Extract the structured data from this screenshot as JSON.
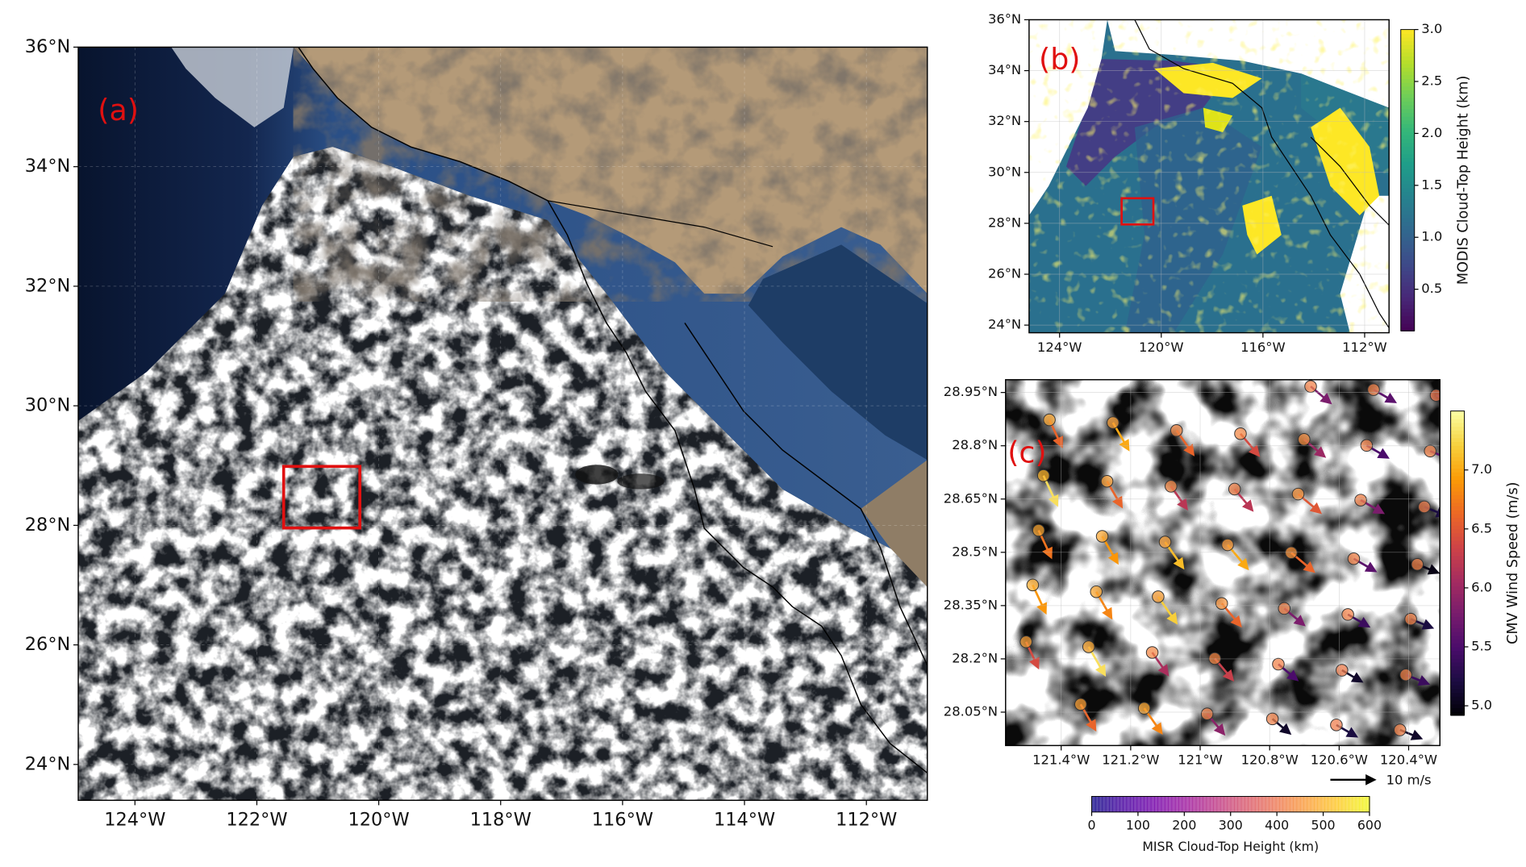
{
  "chart_data": [
    {
      "type": "satellite",
      "panel_label": "(a)",
      "xlim": [
        -124.93,
        -111.0
      ],
      "ylim": [
        23.4,
        36
      ],
      "xticks": [
        {
          "value": -124,
          "label": "124°W"
        },
        {
          "value": -122,
          "label": "122°W"
        },
        {
          "value": -120,
          "label": "120°W"
        },
        {
          "value": -118,
          "label": "118°W"
        },
        {
          "value": -116,
          "label": "116°W"
        },
        {
          "value": -114,
          "label": "114°W"
        },
        {
          "value": -112,
          "label": "112°W"
        }
      ],
      "yticks": [
        {
          "value": 24,
          "label": "24°N"
        },
        {
          "value": 26,
          "label": "26°N"
        },
        {
          "value": 28,
          "label": "28°N"
        },
        {
          "value": 30,
          "label": "30°N"
        },
        {
          "value": 32,
          "label": "32°N"
        },
        {
          "value": 34,
          "label": "34°N"
        },
        {
          "value": 36,
          "label": "36°N"
        }
      ],
      "grid": true,
      "box_color": "#e01010"
    },
    {
      "type": "heightmap",
      "panel_label": "(b)",
      "xlim": [
        -125.2,
        -111.04
      ],
      "ylim": [
        23.7,
        36
      ],
      "xticks": [
        {
          "value": -124,
          "label": "124°W"
        },
        {
          "value": -120,
          "label": "120°W"
        },
        {
          "value": -116,
          "label": "116°W"
        },
        {
          "value": -112,
          "label": "112°W"
        }
      ],
      "yticks": [
        {
          "value": 24,
          "label": "24°N"
        },
        {
          "value": 26,
          "label": "26°N"
        },
        {
          "value": 28,
          "label": "28°N"
        },
        {
          "value": 30,
          "label": "30°N"
        },
        {
          "value": 32,
          "label": "32°N"
        },
        {
          "value": 34,
          "label": "34°N"
        },
        {
          "value": 36,
          "label": "36°N"
        }
      ],
      "grid": true,
      "box_color": "#e01010",
      "colorbar": {
        "label": "MODIS Cloud-Top Height (km)",
        "colormap": "viridis",
        "clim": [
          0.1,
          3.0
        ],
        "ticks": [
          0.5,
          {
            "value": 1.0,
            "label": "1.0"
          },
          1.5,
          {
            "value": 2.0,
            "label": "2.0"
          },
          2.5,
          {
            "value": 3.0,
            "label": "3.0"
          }
        ]
      }
    },
    {
      "type": "quiver",
      "panel_label": "(c)",
      "xlim": [
        -121.56,
        -120.31
      ],
      "ylim": [
        27.956,
        28.986
      ],
      "xticks": [
        {
          "value": -121.4,
          "label": "121.4°W"
        },
        {
          "value": -121.2,
          "label": "121.2°W"
        },
        {
          "value": -121.0,
          "label": "121°W"
        },
        {
          "value": -120.8,
          "label": "120.8°W"
        },
        {
          "value": -120.6,
          "label": "120.6°W"
        },
        {
          "value": -120.4,
          "label": "120.4°W"
        }
      ],
      "yticks": [
        {
          "value": 28.05,
          "label": "28.05°N"
        },
        {
          "value": 28.2,
          "label": "28.2°N"
        },
        {
          "value": 28.35,
          "label": "28.35°N"
        },
        {
          "value": 28.5,
          "label": "28.5°N"
        },
        {
          "value": 28.65,
          "label": "28.65°N"
        },
        {
          "value": 28.8,
          "label": "28.8°N"
        },
        {
          "value": 28.95,
          "label": "28.95°N"
        }
      ],
      "grid": true,
      "vectors": {
        "lon": [
          -120.682,
          -120.501,
          -120.321,
          -121.434,
          -121.251,
          -121.068,
          -120.884,
          -120.701,
          -120.521,
          -120.338,
          -121.451,
          -121.268,
          -121.084,
          -120.901,
          -120.718,
          -120.538,
          -120.355,
          -121.465,
          -121.282,
          -121.101,
          -120.921,
          -120.738,
          -120.558,
          -120.375,
          -121.482,
          -121.299,
          -121.121,
          -120.938,
          -120.758,
          -120.575,
          -120.394,
          -121.501,
          -121.321,
          -121.138,
          -120.958,
          -120.775,
          -120.592,
          -120.408,
          -121.344,
          -121.161,
          -120.98,
          -120.792,
          -120.608,
          -120.425
        ],
        "lat": [
          28.967,
          28.958,
          28.942,
          28.873,
          28.865,
          28.843,
          28.834,
          28.818,
          28.801,
          28.785,
          28.716,
          28.7,
          28.686,
          28.678,
          28.664,
          28.647,
          28.628,
          28.562,
          28.545,
          28.529,
          28.521,
          28.499,
          28.482,
          28.466,
          28.408,
          28.389,
          28.375,
          28.356,
          28.342,
          28.325,
          28.312,
          28.248,
          28.234,
          28.218,
          28.201,
          28.185,
          28.168,
          28.155,
          28.072,
          28.061,
          28.045,
          28.031,
          28.014,
          28.0
        ],
        "speed": [
          5.8,
          5.6,
          5.3,
          6.6,
          7.0,
          6.6,
          6.4,
          6.0,
          5.5,
          5.6,
          7.3,
          6.6,
          6.2,
          6.2,
          6.5,
          5.8,
          5.2,
          6.7,
          6.9,
          7.1,
          7.0,
          6.6,
          5.6,
          5.0,
          6.9,
          6.8,
          7.2,
          6.6,
          5.8,
          5.4,
          5.2,
          6.4,
          7.3,
          6.1,
          6.3,
          5.5,
          5.1,
          5.4,
          6.6,
          6.8,
          5.9,
          5.1,
          5.2,
          5.1
        ],
        "direction": [
          130,
          120,
          112,
          155,
          150,
          145,
          140,
          130,
          120,
          112,
          155,
          150,
          145,
          140,
          130,
          120,
          112,
          155,
          150,
          145,
          140,
          130,
          120,
          112,
          155,
          150,
          145,
          140,
          130,
          120,
          112,
          155,
          150,
          145,
          140,
          130,
          120,
          112,
          150,
          145,
          140,
          130,
          120,
          112
        ],
        "height": [
          420,
          420,
          400,
          480,
          470,
          430,
          430,
          440,
          420,
          420,
          500,
          470,
          430,
          420,
          450,
          420,
          410,
          480,
          480,
          470,
          460,
          450,
          420,
          420,
          490,
          480,
          470,
          450,
          420,
          420,
          420,
          470,
          480,
          430,
          430,
          420,
          410,
          420,
          470,
          480,
          420,
          420,
          410,
          420
        ]
      },
      "quiver_key": {
        "value": 10,
        "label": "10 m/s"
      },
      "speed_colorbar": {
        "label": "CMV Wind Speed (m/s)",
        "colormap": "inferno",
        "clim": [
          4.92,
          7.5
        ],
        "ticks": [
          {
            "value": 5.0,
            "label": "5.0"
          },
          5.5,
          {
            "value": 6.0,
            "label": "6.0"
          },
          6.5,
          {
            "value": 7.0,
            "label": "7.0"
          }
        ]
      },
      "height_colorbar": {
        "label": "MISR Cloud-Top Height (km)",
        "colormap": "plasma",
        "clim": [
          0,
          600
        ],
        "ticks": [
          0,
          100,
          200,
          300,
          400,
          500,
          600
        ]
      }
    }
  ]
}
